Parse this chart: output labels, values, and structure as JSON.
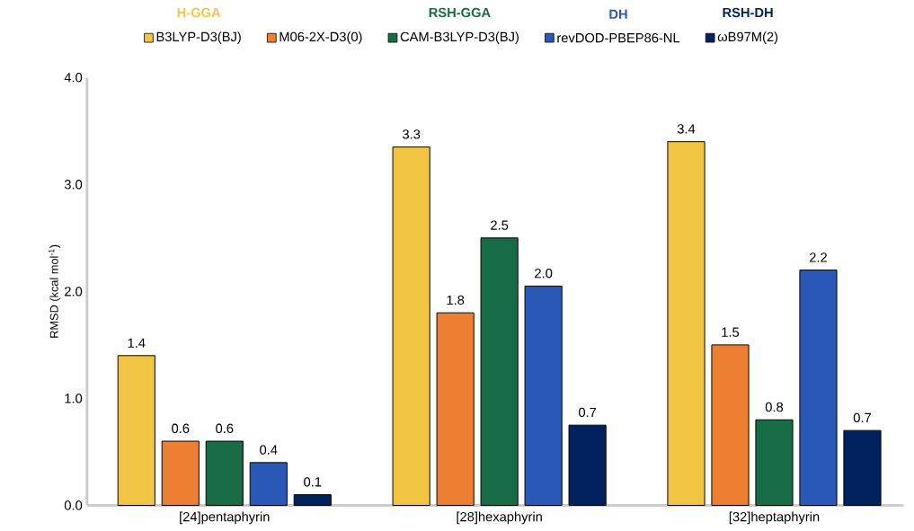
{
  "chart_data": {
    "type": "bar",
    "ylabel": "RMSD (kcal mol$^{-1}$)",
    "categories": [
      "[24]pentaphyrin",
      "[28]hexaphyrin",
      "[32]heptaphyrin"
    ],
    "series": [
      {
        "name": "B3LYP-D3(BJ)",
        "color": "#f2c443",
        "values": [
          1.4,
          3.35,
          3.4
        ],
        "value_labels": [
          "1.4",
          "3.3",
          "3.4"
        ]
      },
      {
        "name": "M06-2X-D3(0)",
        "color": "#ed7f32",
        "values": [
          0.6,
          1.8,
          1.5
        ],
        "value_labels": [
          "0.6",
          "1.8",
          "1.5"
        ]
      },
      {
        "name": "CAM-B3LYP-D3(BJ)",
        "color": "#176b45",
        "values": [
          0.6,
          2.5,
          0.8
        ],
        "value_labels": [
          "0.6",
          "2.5",
          "0.8"
        ]
      },
      {
        "name": "revDOD-PBEP86-NL",
        "color": "#2a58b6",
        "values": [
          0.4,
          2.05,
          2.2
        ],
        "value_labels": [
          "0.4",
          "2.0",
          "2.2"
        ]
      },
      {
        "name": "ωB97M(2)",
        "color": "#02215f",
        "values": [
          0.1,
          0.75,
          0.7
        ],
        "value_labels": [
          "0.1",
          "0.7",
          "0.7"
        ]
      }
    ],
    "annotations": [
      "H-GGA",
      "RSH-GGA",
      "DH",
      "RSH-DH"
    ],
    "ylim": [
      0,
      4
    ],
    "yticks": [
      {
        "value": 0,
        "label": "0.0"
      },
      {
        "value": 1,
        "label": "1.0"
      },
      {
        "value": 2,
        "label": "2.0"
      },
      {
        "value": 3,
        "label": "3.0"
      },
      {
        "value": 4,
        "label": "4.0"
      }
    ],
    "legend": "top",
    "grid": false
  }
}
